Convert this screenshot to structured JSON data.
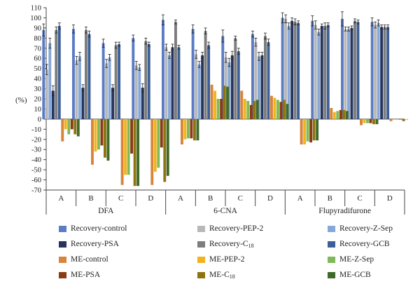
{
  "chart_data": {
    "type": "bar",
    "ylabel": "(%)",
    "ylim": [
      -70,
      110
    ],
    "yticks": [
      -70,
      -60,
      -50,
      -40,
      -30,
      -20,
      -10,
      0,
      10,
      20,
      30,
      40,
      50,
      60,
      70,
      80,
      90,
      100,
      110
    ],
    "groups": [
      {
        "label": "DFA",
        "subgroups": [
          "A",
          "B",
          "C",
          "D"
        ]
      },
      {
        "label": "6-CNA",
        "subgroups": [
          "A",
          "B",
          "C",
          "D"
        ]
      },
      {
        "label": "Flupyradifurone",
        "subgroups": [
          "A",
          "B",
          "C",
          "D"
        ]
      }
    ],
    "categories": [
      "DFA-A",
      "DFA-B",
      "DFA-C",
      "DFA-D",
      "6-CNA-A",
      "6-CNA-B",
      "6-CNA-C",
      "6-CNA-D",
      "Flupyradifurone-A",
      "Flupyradifurone-B",
      "Flupyradifurone-C",
      "Flupyradifurone-D"
    ],
    "series": [
      {
        "name": "Recovery-control",
        "color": "#5b7cc4",
        "values": [
          88,
          89,
          75,
          80,
          98,
          89,
          82,
          84,
          100,
          97,
          99,
          96
        ],
        "errors": [
          6,
          4,
          4,
          3,
          5,
          4,
          6,
          3,
          5,
          5,
          7,
          4
        ]
      },
      {
        "name": "Recovery-PEP-2",
        "color": "#b8b8b8",
        "values": [
          49,
          58,
          55,
          53,
          71,
          64,
          61,
          76,
          99,
          93,
          89,
          93
        ],
        "errors": [
          5,
          4,
          4,
          4,
          3,
          4,
          5,
          4,
          4,
          4,
          2,
          3
        ]
      },
      {
        "name": "Recovery-Z-Sep",
        "color": "#86a8d8",
        "values": [
          75,
          62,
          61,
          51,
          63,
          54,
          56,
          62,
          92,
          86,
          89,
          95
        ],
        "errors": [
          5,
          4,
          3,
          3,
          3,
          3,
          4,
          4,
          3,
          3,
          2,
          3
        ]
      },
      {
        "name": "Recovery-PSA",
        "color": "#27355e",
        "values": [
          28,
          31,
          31,
          31,
          71,
          63,
          63,
          63,
          97,
          92,
          90,
          91
        ],
        "errors": [
          5,
          3,
          3,
          4,
          3,
          3,
          4,
          3,
          3,
          2,
          2,
          2
        ]
      },
      {
        "name": "Recovery-C18",
        "color": "#7d7d7d",
        "values": [
          88,
          88,
          73,
          77,
          96,
          87,
          80,
          82,
          96,
          92,
          97,
          91
        ],
        "errors": [
          3,
          3,
          3,
          3,
          2,
          3,
          2,
          3,
          3,
          3,
          2,
          2
        ]
      },
      {
        "name": "Recovery-GCB",
        "color": "#3c5f97",
        "values": [
          92,
          84,
          74,
          74,
          71,
          73,
          67,
          76,
          95,
          93,
          96,
          91
        ],
        "errors": [
          3,
          3,
          2,
          2,
          2,
          3,
          3,
          3,
          2,
          2,
          2,
          2
        ]
      },
      {
        "name": "ME-control",
        "color": "#d8843a",
        "values": [
          -22,
          -45,
          -65,
          -65,
          -25,
          34,
          28,
          23,
          -25,
          11,
          -6,
          -2
        ],
        "errors": [
          0,
          0,
          0,
          0,
          0,
          0,
          0,
          0,
          0,
          0,
          0,
          0
        ]
      },
      {
        "name": "ME-PEP-2",
        "color": "#f2b320",
        "values": [
          -10,
          -32,
          -55,
          -52,
          -20,
          28,
          20,
          21,
          -25,
          7,
          -4,
          0
        ],
        "errors": [
          0,
          0,
          0,
          0,
          0,
          0,
          0,
          0,
          0,
          0,
          0,
          0
        ]
      },
      {
        "name": "ME-Z-Sep",
        "color": "#7fb95c",
        "values": [
          -15,
          -30,
          -55,
          -48,
          -19,
          20,
          18,
          19,
          -22,
          8,
          -4,
          0
        ],
        "errors": [
          0,
          0,
          0,
          0,
          0,
          0,
          0,
          0,
          0,
          0,
          0,
          0
        ]
      },
      {
        "name": "ME-PSA",
        "color": "#8a3a14",
        "values": [
          -10,
          -26,
          -34,
          -28,
          -19,
          20,
          14,
          17,
          -23,
          9,
          -4,
          0
        ],
        "errors": [
          0,
          0,
          0,
          0,
          0,
          0,
          0,
          0,
          0,
          0,
          0,
          0
        ]
      },
      {
        "name": "ME-C18",
        "color": "#8e7410",
        "values": [
          -15,
          -38,
          -66,
          -62,
          -21,
          33,
          18,
          19,
          -21,
          9,
          -5,
          -2
        ],
        "errors": [
          0,
          0,
          0,
          0,
          0,
          0,
          0,
          0,
          0,
          0,
          0,
          0
        ]
      },
      {
        "name": "ME-GCB",
        "color": "#3e6a2a",
        "values": [
          -17,
          -41,
          -66,
          -56,
          -21,
          32,
          19,
          15,
          -21,
          8,
          -5,
          0
        ],
        "errors": [
          0,
          0,
          0,
          0,
          0,
          0,
          0,
          0,
          0,
          0,
          0,
          0
        ]
      }
    ],
    "legend": {
      "placement": "bottom",
      "columns": 3,
      "entries": [
        {
          "base": "Recovery-control",
          "sub": "",
          "color": "#5b7cc4"
        },
        {
          "base": "Recovery-PEP-2",
          "sub": "",
          "color": "#b8b8b8"
        },
        {
          "base": "Recovery-Z-Sep",
          "sub": "",
          "color": "#86a8d8"
        },
        {
          "base": "Recovery-PSA",
          "sub": "",
          "color": "#27355e"
        },
        {
          "base": "Recovery-C",
          "sub": "18",
          "color": "#7d7d7d"
        },
        {
          "base": "Recovery-GCB",
          "sub": "",
          "color": "#3c5f97"
        },
        {
          "base": "ME-control",
          "sub": "",
          "color": "#d8843a"
        },
        {
          "base": "ME-PEP-2",
          "sub": "",
          "color": "#f2b320"
        },
        {
          "base": "ME-Z-Sep",
          "sub": "",
          "color": "#7fb95c"
        },
        {
          "base": "ME-PSA",
          "sub": "",
          "color": "#8a3a14"
        },
        {
          "base": "ME-C",
          "sub": "18",
          "color": "#8e7410"
        },
        {
          "base": "ME-GCB",
          "sub": "",
          "color": "#3e6a2a"
        }
      ]
    },
    "grid": false
  }
}
